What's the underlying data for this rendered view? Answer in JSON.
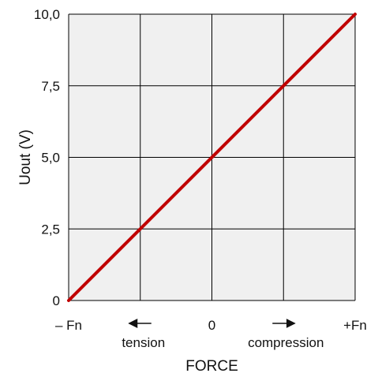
{
  "chart_data": {
    "type": "line",
    "title": "",
    "xlabel": "FORCE",
    "ylabel": "Uout (V)",
    "x_tick_labels": [
      "– Fn",
      "0",
      "+Fn"
    ],
    "y_tick_labels": [
      "0",
      "2,5",
      "5,0",
      "7,5",
      "10,0"
    ],
    "xlim": [
      -1,
      1
    ],
    "ylim": [
      0,
      10
    ],
    "grid": true,
    "series": [
      {
        "x": [
          -1,
          1
        ],
        "y": [
          0,
          10
        ],
        "color": "#c00000"
      }
    ],
    "annotations": [
      {
        "text": "tension",
        "arrow": "left",
        "x": -0.5
      },
      {
        "text": "compression",
        "arrow": "right",
        "x": 0.5
      }
    ]
  },
  "colors": {
    "plot_background": "#f0f0f0",
    "grid": "#000000",
    "line": "#c00000"
  }
}
